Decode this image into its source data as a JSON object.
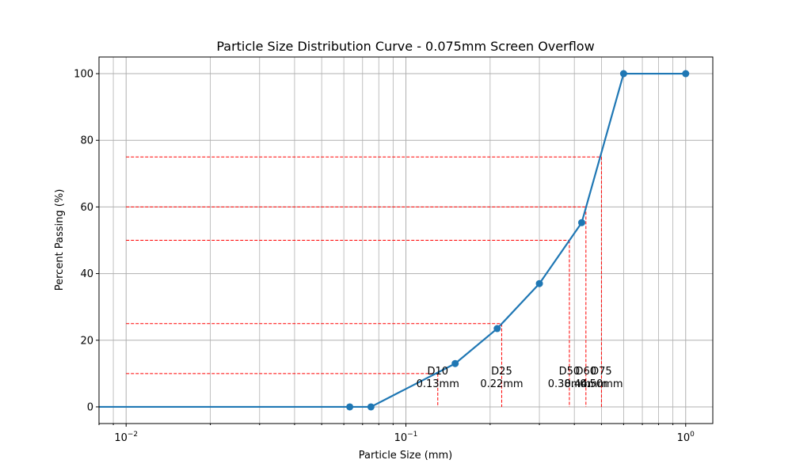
{
  "chart_data": {
    "type": "line",
    "title": "Particle Size Distribution Curve - 0.075mm Screen Overflow",
    "xlabel": "Particle Size (mm)",
    "ylabel": "Percent Passing (%)",
    "xscale": "log",
    "xlim": [
      0.008,
      1.25
    ],
    "ylim": [
      -5,
      105
    ],
    "grid": true,
    "x_ticks": [
      {
        "value": 0.01,
        "base": "10",
        "exp": "−2"
      },
      {
        "value": 0.1,
        "base": "10",
        "exp": "−1"
      },
      {
        "value": 1,
        "base": "10",
        "exp": "0"
      }
    ],
    "y_ticks": [
      {
        "value": 0,
        "label": "0"
      },
      {
        "value": 20,
        "label": "20"
      },
      {
        "value": 40,
        "label": "40"
      },
      {
        "value": 60,
        "label": "60"
      },
      {
        "value": 80,
        "label": "80"
      },
      {
        "value": 100,
        "label": "100"
      }
    ],
    "series": [
      {
        "color": "#1f77b4",
        "x": [
          0.001,
          0.063,
          0.075,
          0.15,
          0.212,
          0.3,
          0.425,
          0.6,
          1.0
        ],
        "y": [
          0,
          0,
          0,
          13,
          23.5,
          37,
          55.3,
          100,
          100
        ]
      }
    ],
    "reference_lines": [
      {
        "percent": 10,
        "size": 0.13,
        "label": "D10",
        "value_label": "0.13mm"
      },
      {
        "percent": 25,
        "size": 0.22,
        "label": "D25",
        "value_label": "0.22mm"
      },
      {
        "percent": 50,
        "size": 0.384,
        "label": "D50",
        "value_label": "0.38mm"
      },
      {
        "percent": 60,
        "size": 0.44,
        "label": "D60",
        "value_label": "0.44mm"
      },
      {
        "percent": 75,
        "size": 0.5,
        "label": "D75",
        "value_label": "0.50mm"
      }
    ],
    "reference_line_start": 0.01,
    "reference_color": "#ff0000",
    "grid_color": "#b0b0b0"
  }
}
